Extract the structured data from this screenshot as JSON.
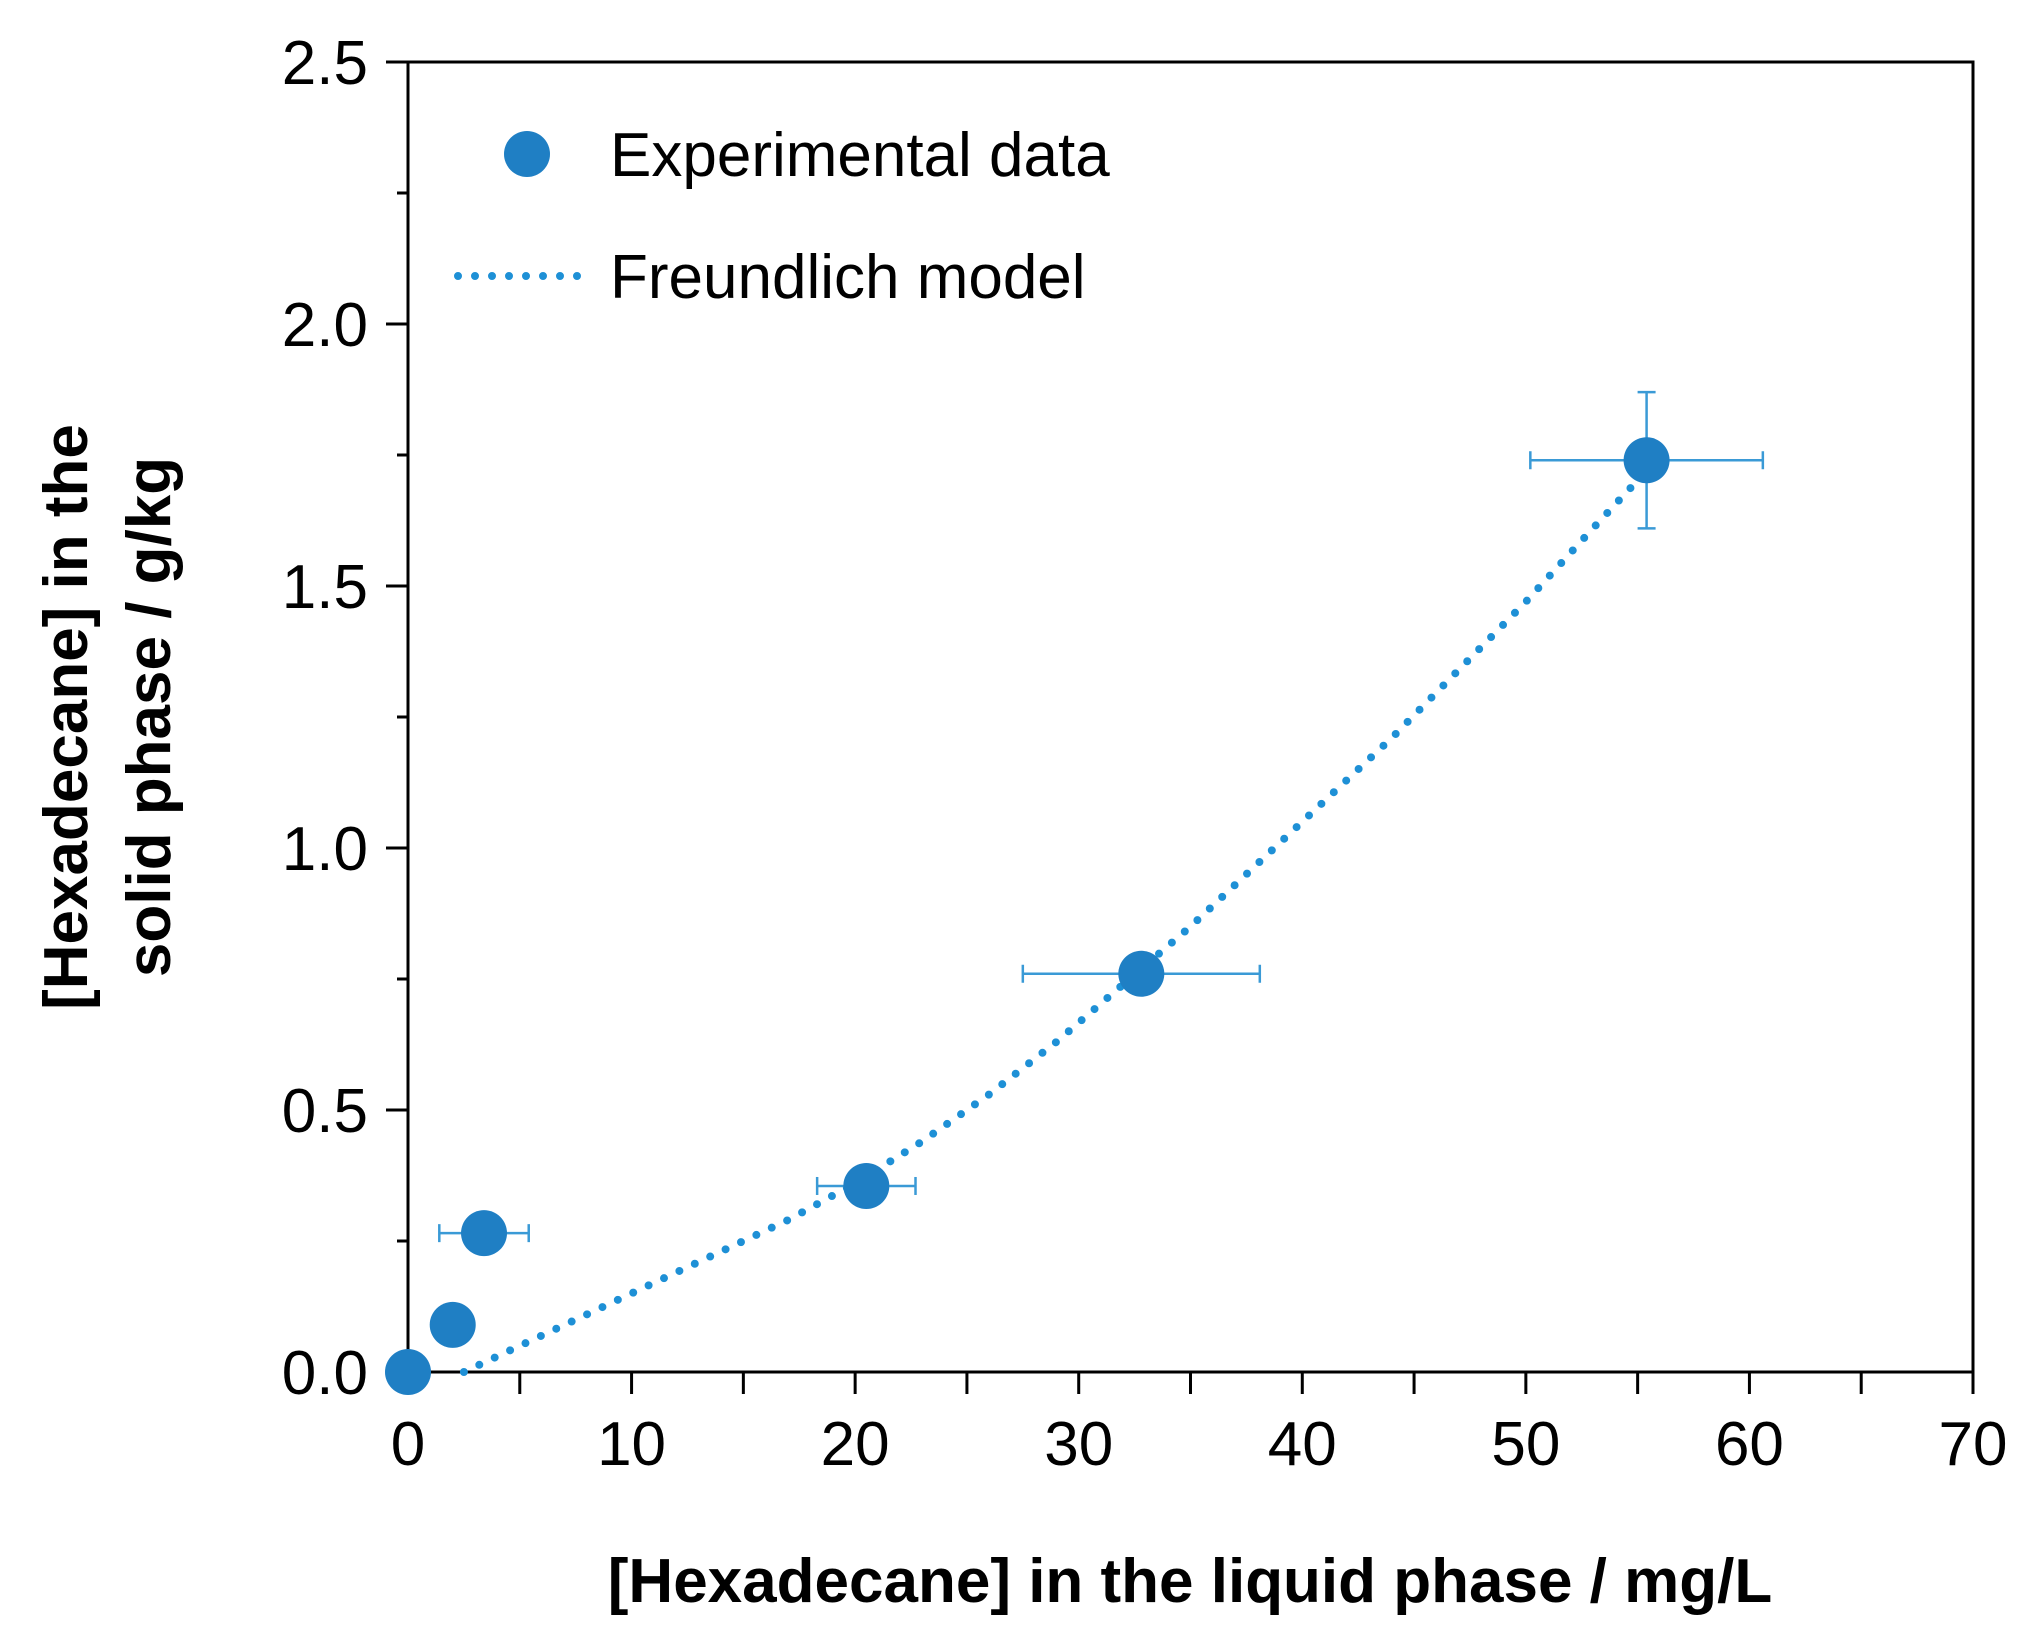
{
  "chart_data": {
    "type": "scatter",
    "title": "",
    "xlabel": "[Hexadecane] in the liquid phase / mg/L",
    "ylabel_lines": [
      "[Hexadecane] in the",
      "solid phase / g/kg"
    ],
    "xlim": [
      0,
      70
    ],
    "ylim": [
      0,
      2.5
    ],
    "xticks": [
      0,
      10,
      20,
      30,
      40,
      50,
      60,
      70
    ],
    "xtick_labels": [
      "0",
      "10",
      "20",
      "30",
      "40",
      "50",
      "60",
      "70"
    ],
    "xminor_step": 5,
    "yticks": [
      0,
      0.5,
      1.0,
      1.5,
      2.0,
      2.5
    ],
    "ytick_labels": [
      "0.0",
      "0.5",
      "1.0",
      "1.5",
      "2.0",
      "2.5"
    ],
    "yminor_step": 0.25,
    "grid": false,
    "legend_position": "top-left",
    "colors": {
      "marker": "#1f7fc4",
      "errorbar": "#3a9ad6",
      "model": "#1e90d6",
      "axes": "#000000"
    },
    "series": [
      {
        "name": "Experimental data",
        "kind": "markers",
        "points": [
          {
            "x": 0.0,
            "y": 0.0
          },
          {
            "x": 2.0,
            "y": 0.09
          },
          {
            "x": 3.4,
            "y": 0.265,
            "xerr": 2.0
          },
          {
            "x": 20.5,
            "y": 0.355,
            "xerr": 2.2
          },
          {
            "x": 32.8,
            "y": 0.76,
            "xerr": 5.3
          },
          {
            "x": 55.4,
            "y": 1.74,
            "xerr": 5.2,
            "yerr": 0.13
          }
        ]
      },
      {
        "name": "Freundlich model",
        "kind": "dotted-line",
        "x": [
          2.5,
          5,
          8,
          11,
          14,
          17,
          20,
          23,
          26,
          29,
          32,
          35,
          38,
          41,
          44,
          47,
          50,
          53,
          55.4
        ],
        "y": [
          0.0,
          0.05,
          0.11,
          0.17,
          0.23,
          0.29,
          0.36,
          0.44,
          0.53,
          0.63,
          0.74,
          0.85,
          0.97,
          1.09,
          1.21,
          1.34,
          1.47,
          1.61,
          1.72
        ]
      }
    ]
  }
}
